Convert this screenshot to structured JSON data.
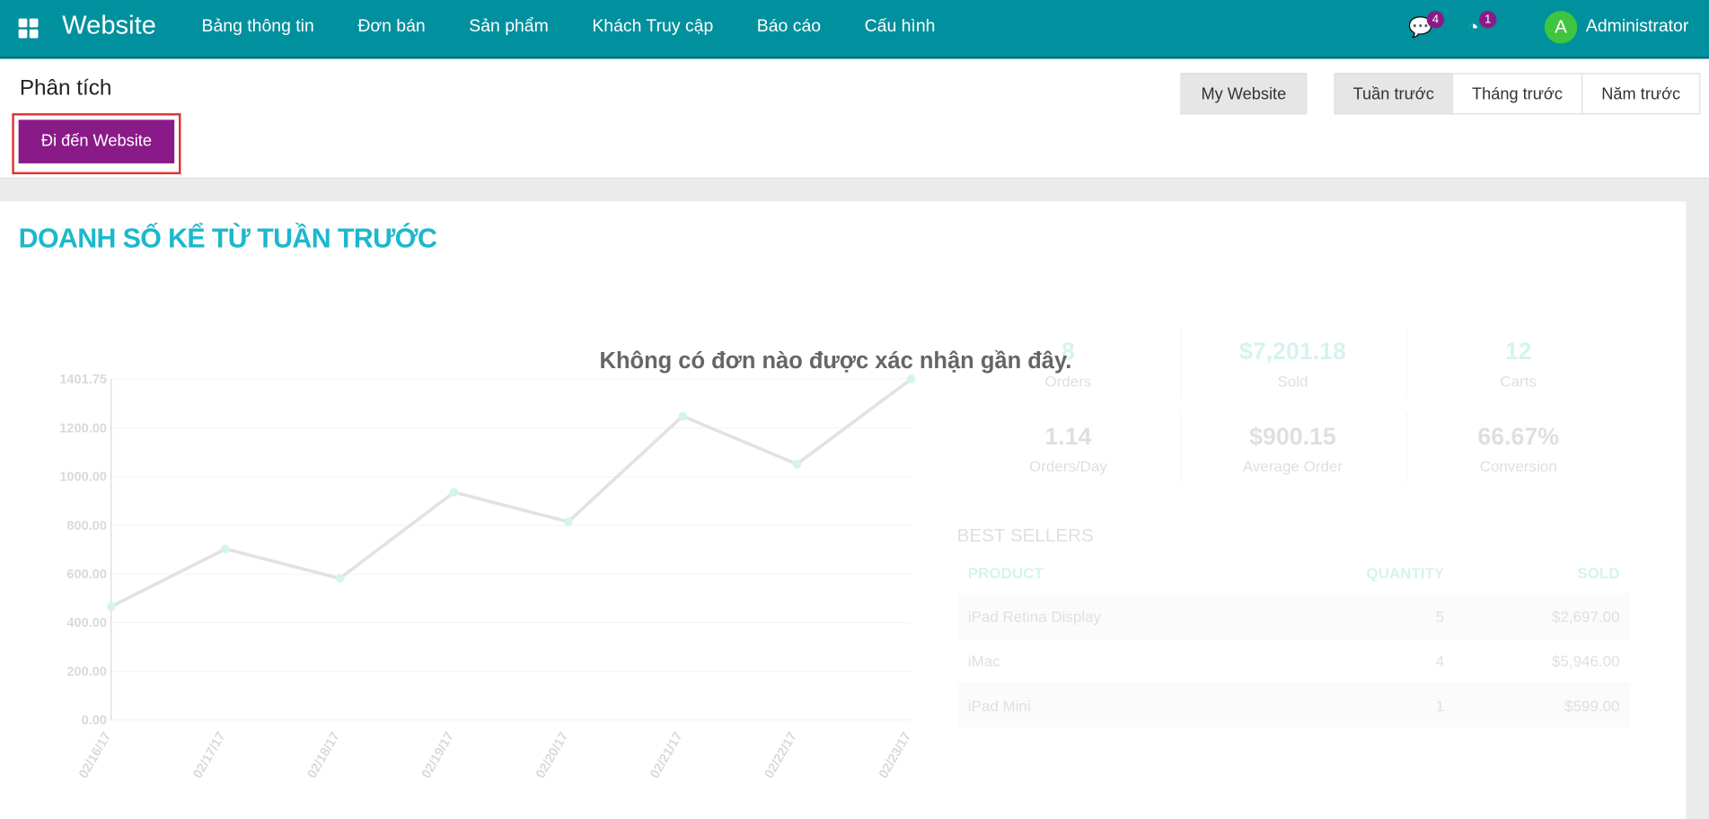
{
  "nav": {
    "app_title": "Website",
    "menu": [
      "Bảng thông tin",
      "Đơn bán",
      "Sản phẩm",
      "Khách Truy cập",
      "Báo cáo",
      "Cấu hình"
    ],
    "messages_count": "4",
    "activities_count": "1",
    "avatar_letter": "A",
    "user": "Administrator",
    "accent": "#00909e"
  },
  "control": {
    "title": "Phân tích",
    "go_button": "Đi đến Website",
    "website_button": "My Website",
    "periods": [
      "Tuần trước",
      "Tháng trước",
      "Năm trước"
    ],
    "active_period": "Tuần trước"
  },
  "dashboard": {
    "heading": "DOANH SỐ KỂ TỪ TUẦN TRƯỚC",
    "empty_message": "Không có đơn nào được xác nhận gần đây.",
    "kpis": [
      {
        "value": "8",
        "label": "Orders"
      },
      {
        "value": "$7,201.18",
        "label": "Sold"
      },
      {
        "value": "12",
        "label": "Carts"
      },
      {
        "value": "1.14",
        "label": "Orders/Day"
      },
      {
        "value": "$900.15",
        "label": "Average Order"
      },
      {
        "value": "66.67%",
        "label": "Conversion"
      }
    ],
    "best_sellers": {
      "title": "BEST SELLERS",
      "headers": [
        "PRODUCT",
        "QUANTITY",
        "SOLD"
      ],
      "rows": [
        [
          "iPad Retina Display",
          "5",
          "$2,697.00"
        ],
        [
          "iMac",
          "4",
          "$5,946.00"
        ],
        [
          "iPad Mini",
          "1",
          "$599.00"
        ]
      ]
    }
  },
  "chart_data": {
    "type": "line",
    "categories": [
      "02/16/17",
      "02/17/17",
      "02/18/17",
      "02/19/17",
      "02/20/17",
      "02/21/17",
      "02/22/17",
      "02/23/17"
    ],
    "values": [
      466,
      703,
      582,
      936,
      815,
      1249,
      1052,
      1401.75
    ],
    "yticks": [
      "0.00",
      "200.00",
      "400.00",
      "600.00",
      "800.00",
      "1000.00",
      "1200.00",
      "1401.75"
    ],
    "ylim": [
      0,
      1401.75
    ],
    "grid": true
  }
}
